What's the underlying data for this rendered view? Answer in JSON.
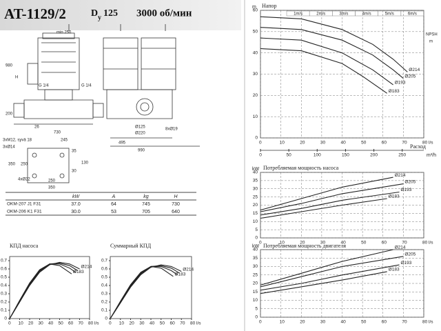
{
  "header": {
    "model": "AT-1129/2",
    "dn_prefix": "D",
    "dn_sub": "y",
    "dn_value": "125",
    "speed": "3000 об/мин"
  },
  "drawing": {
    "labels": [
      "min 250",
      "980",
      "H",
      "G 1/4",
      "G 1/4",
      "200",
      "26",
      "730",
      "245",
      "3xM12, syvä 18",
      "Ø125",
      "Ø220",
      "8xØ19",
      "495",
      "990",
      "3xØ14",
      "35",
      "130",
      "350",
      "250",
      "4xØ22",
      "250",
      "350",
      "30"
    ]
  },
  "table": {
    "columns": [
      "kW",
      "A",
      "kg",
      "H"
    ],
    "rows": [
      {
        "model": "OKM-207 J1 F31",
        "cells": [
          "37.0",
          "64",
          "745",
          "730"
        ]
      },
      {
        "model": "OKM-206 K1 F31",
        "cells": [
          "30.0",
          "53",
          "705",
          "640"
        ]
      }
    ]
  },
  "chart_data": [
    {
      "type": "line",
      "title": "Напор",
      "y_unit": "m",
      "y2_label": "NPSH",
      "y2_unit": "m",
      "x2_label": "Расход",
      "x2_unit": "m³/h",
      "grid": true,
      "velocity_labels": [
        "1m/s",
        "2m/s",
        "3m/s",
        "4m/s",
        "5m/s",
        "6m/s"
      ],
      "xlim": [
        0,
        80
      ],
      "xticks": [
        0,
        10,
        20,
        30,
        40,
        50,
        60,
        70,
        {
          "value": 80,
          "label": "80 l/s"
        }
      ],
      "x2lim": [
        0,
        288
      ],
      "x2ticks": [
        0,
        50,
        100,
        150,
        200,
        250
      ],
      "ylim": [
        0,
        60
      ],
      "yticks": [
        0,
        10,
        20,
        30,
        40,
        50,
        60
      ],
      "series": [
        {
          "name": "Ø214",
          "color": "#222",
          "x": [
            0,
            20,
            40,
            55,
            65,
            72
          ],
          "values": [
            57,
            56,
            51,
            44,
            37,
            31
          ]
        },
        {
          "name": "Ø205",
          "color": "#222",
          "x": [
            0,
            20,
            40,
            55,
            65,
            70
          ],
          "values": [
            52,
            51,
            46,
            39,
            32,
            28
          ]
        },
        {
          "name": "Ø193",
          "color": "#222",
          "x": [
            0,
            20,
            40,
            55,
            65
          ],
          "values": [
            47,
            46,
            40,
            32,
            25
          ]
        },
        {
          "name": "Ø183",
          "color": "#222",
          "x": [
            0,
            20,
            40,
            50,
            62
          ],
          "values": [
            42,
            41,
            35,
            29,
            21
          ]
        }
      ]
    },
    {
      "type": "line",
      "title": "Потребляемая мощность насоса",
      "y_unit": "kW",
      "grid": true,
      "xlim": [
        0,
        80
      ],
      "xticks": [
        0,
        10,
        20,
        30,
        40,
        50,
        60,
        70,
        {
          "value": 80,
          "label": "80 l/s"
        }
      ],
      "ylim": [
        0,
        40
      ],
      "yticks": [
        0,
        5,
        10,
        15,
        20,
        25,
        30,
        35,
        40
      ],
      "series": [
        {
          "name": "Ø214",
          "color": "#222",
          "x": [
            0,
            20,
            40,
            65
          ],
          "values": [
            17,
            24,
            31,
            37
          ]
        },
        {
          "name": "Ø205",
          "color": "#222",
          "x": [
            0,
            20,
            40,
            70
          ],
          "values": [
            16,
            21,
            27,
            33
          ]
        },
        {
          "name": "Ø193",
          "color": "#222",
          "x": [
            0,
            20,
            40,
            68
          ],
          "values": [
            14,
            18,
            23,
            28
          ]
        },
        {
          "name": "Ø183",
          "color": "#222",
          "x": [
            0,
            20,
            40,
            62
          ],
          "values": [
            12,
            16,
            20,
            24
          ]
        }
      ]
    },
    {
      "type": "line",
      "title": "Потребляемая мощность двигателя",
      "y_unit": "kW",
      "grid": true,
      "xlim": [
        0,
        80
      ],
      "xticks": [
        0,
        10,
        20,
        30,
        40,
        50,
        60,
        70,
        {
          "value": 80,
          "label": "80 l/s"
        }
      ],
      "ylim": [
        0,
        40
      ],
      "yticks": [
        0,
        5,
        10,
        15,
        20,
        25,
        30,
        35,
        40
      ],
      "series": [
        {
          "name": "Ø214",
          "color": "#222",
          "x": [
            0,
            20,
            40,
            65
          ],
          "values": [
            19,
            26,
            33,
            40
          ]
        },
        {
          "name": "Ø205",
          "color": "#222",
          "x": [
            0,
            20,
            40,
            70
          ],
          "values": [
            18,
            24,
            30,
            36
          ]
        },
        {
          "name": "Ø193",
          "color": "#222",
          "x": [
            0,
            20,
            40,
            68
          ],
          "values": [
            16,
            20,
            25,
            31
          ]
        },
        {
          "name": "Ø183",
          "color": "#222",
          "x": [
            0,
            20,
            40,
            62
          ],
          "values": [
            14,
            18,
            22,
            27
          ]
        }
      ]
    },
    {
      "type": "line",
      "title": "КПД насоса",
      "grid": false,
      "xlim": [
        0,
        80
      ],
      "xticks": [
        0,
        10,
        20,
        30,
        40,
        50,
        60,
        70,
        {
          "value": 80,
          "label": "80 l/s"
        }
      ],
      "ylim": [
        0,
        0.75
      ],
      "yticks": [
        0,
        0.1,
        0.2,
        0.3,
        0.4,
        0.5,
        0.6,
        0.7
      ],
      "series": [
        {
          "name": "Ø214",
          "color": "#222",
          "x": [
            0,
            10,
            20,
            30,
            40,
            50,
            60,
            70
          ],
          "values": [
            0,
            0.2,
            0.4,
            0.56,
            0.65,
            0.68,
            0.66,
            0.6
          ]
        },
        {
          "color": "#222",
          "x": [
            0,
            10,
            20,
            30,
            40,
            50,
            60,
            68
          ],
          "values": [
            0,
            0.2,
            0.41,
            0.57,
            0.66,
            0.67,
            0.64,
            0.58
          ]
        },
        {
          "color": "#222",
          "x": [
            0,
            10,
            20,
            30,
            40,
            50,
            60,
            66
          ],
          "values": [
            0,
            0.21,
            0.42,
            0.58,
            0.66,
            0.66,
            0.61,
            0.56
          ]
        },
        {
          "name": "Ø183",
          "color": "#222",
          "x": [
            0,
            10,
            20,
            30,
            40,
            50,
            62
          ],
          "values": [
            0,
            0.22,
            0.43,
            0.59,
            0.66,
            0.64,
            0.54
          ]
        }
      ]
    },
    {
      "type": "line",
      "title": "Суммарный КПД",
      "grid": false,
      "xlim": [
        0,
        80
      ],
      "xticks": [
        0,
        10,
        20,
        30,
        40,
        50,
        60,
        70,
        {
          "value": 80,
          "label": "80 l/s"
        }
      ],
      "ylim": [
        0,
        0.75
      ],
      "yticks": [
        0,
        0.1,
        0.2,
        0.3,
        0.4,
        0.5,
        0.6,
        0.7
      ],
      "series": [
        {
          "name": "Ø214",
          "color": "#222",
          "x": [
            0,
            10,
            20,
            30,
            40,
            50,
            60,
            70
          ],
          "values": [
            0,
            0.19,
            0.38,
            0.53,
            0.62,
            0.65,
            0.63,
            0.57
          ]
        },
        {
          "color": "#222",
          "x": [
            0,
            10,
            20,
            30,
            40,
            50,
            60,
            68
          ],
          "values": [
            0,
            0.19,
            0.39,
            0.54,
            0.63,
            0.64,
            0.61,
            0.55
          ]
        },
        {
          "color": "#222",
          "x": [
            0,
            10,
            20,
            30,
            40,
            50,
            60,
            66
          ],
          "values": [
            0,
            0.2,
            0.4,
            0.55,
            0.63,
            0.63,
            0.58,
            0.53
          ]
        },
        {
          "name": "Ø183",
          "color": "#222",
          "x": [
            0,
            10,
            20,
            30,
            40,
            50,
            62
          ],
          "values": [
            0,
            0.21,
            0.41,
            0.56,
            0.63,
            0.61,
            0.51
          ]
        }
      ]
    }
  ]
}
